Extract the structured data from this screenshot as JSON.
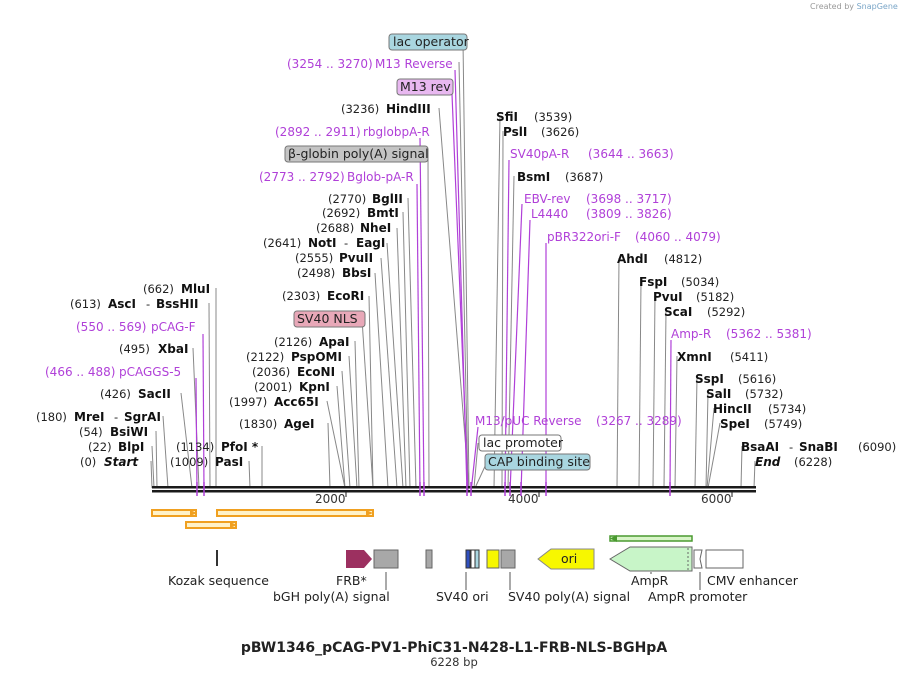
{
  "credit": {
    "created_by": "Created by",
    "brand": "SnapGene"
  },
  "plasmid": {
    "name": "pBW1346_pCAG-PV1-PhiC31-N428-L1-FRB-NLS-BGHpA",
    "length_label": "6228 bp"
  },
  "scale_ticks": [
    "2000",
    "4000",
    "6000"
  ],
  "primer_boxes": [
    {
      "label": "M13 rev"
    }
  ],
  "feature_boxes": [
    {
      "label": "lac operator",
      "color": "#a9d6e0"
    },
    {
      "label": "β-globin poly(A) signal",
      "color": "#c4c4c4"
    },
    {
      "label": "SV40 NLS",
      "color": "#e8a8b8"
    },
    {
      "label": "lac promoter",
      "color": "#ffffff"
    },
    {
      "label": "CAP binding site",
      "color": "#a9d6e0"
    }
  ],
  "left_sites": [
    {
      "pos": "(3236)",
      "enz": "HindIII"
    },
    {
      "pos": "(2770)",
      "enz": "BglII"
    },
    {
      "pos": "(2692)",
      "enz": "BmtI"
    },
    {
      "pos": "(2688)",
      "enz": "NheI"
    },
    {
      "pos": "(2641)",
      "enz": "NotI",
      "enz2": "EagI"
    },
    {
      "pos": "(2555)",
      "enz": "PvuII"
    },
    {
      "pos": "(2498)",
      "enz": "BbsI"
    },
    {
      "pos": "(2303)",
      "enz": "EcoRI"
    },
    {
      "pos": "(662)",
      "enz": "MluI"
    },
    {
      "pos": "(613)",
      "enz": "AscI",
      "enz2": "BssHII"
    },
    {
      "pos": "(495)",
      "enz": "XbaI"
    },
    {
      "pos": "(426)",
      "enz": "SacII"
    },
    {
      "pos": "(180)",
      "enz": "MreI",
      "enz2": "SgrAI"
    },
    {
      "pos": "(54)",
      "enz": "BsiWI"
    },
    {
      "pos": "(22)",
      "enz": "BlpI"
    },
    {
      "pos": "(0)",
      "enz": "Start"
    },
    {
      "pos": "(2126)",
      "enz": "ApaI"
    },
    {
      "pos": "(2122)",
      "enz": "PspOMI"
    },
    {
      "pos": "(2036)",
      "enz": "EcoNI"
    },
    {
      "pos": "(2001)",
      "enz": "KpnI"
    },
    {
      "pos": "(1997)",
      "enz": "Acc65I"
    },
    {
      "pos": "(1830)",
      "enz": "AgeI"
    },
    {
      "pos": "(1134)",
      "enz": "PfoI *"
    },
    {
      "pos": "(1009)",
      "enz": "PasI"
    }
  ],
  "left_primers": [
    {
      "range": "(3254 .. 3270)",
      "name": "M13 Reverse"
    },
    {
      "range": "(2892 .. 2911)",
      "name": "rbglobpA-R"
    },
    {
      "range": "(2773 .. 2792)",
      "name": "Bglob-pA-R"
    },
    {
      "range": "(550 .. 569)",
      "name": "pCAG-F"
    },
    {
      "range": "(466 .. 488)",
      "name": "pCAGGS-5"
    }
  ],
  "right_sites": [
    {
      "enz": "SfiI",
      "pos": "(3539)"
    },
    {
      "enz": "PslI",
      "pos": "(3626)"
    },
    {
      "enz": "BsmI",
      "pos": "(3687)"
    },
    {
      "enz": "AhdI",
      "pos": "(4812)"
    },
    {
      "enz": "FspI",
      "pos": "(5034)"
    },
    {
      "enz": "PvuI",
      "pos": "(5182)"
    },
    {
      "enz": "ScaI",
      "pos": "(5292)"
    },
    {
      "enz": "XmnI",
      "pos": "(5411)"
    },
    {
      "enz": "SspI",
      "pos": "(5616)"
    },
    {
      "enz": "SalI",
      "pos": "(5732)"
    },
    {
      "enz": "HincII",
      "pos": "(5734)"
    },
    {
      "enz": "SpeI",
      "pos": "(5749)"
    },
    {
      "enz": "BsaAI",
      "enz2": "SnaBI",
      "pos": "(6090)"
    },
    {
      "enz": "End",
      "pos": "(6228)"
    }
  ],
  "right_primers": [
    {
      "name": "SV40pA-R",
      "range": "(3644 .. 3663)"
    },
    {
      "name": "EBV-rev",
      "range": "(3698 .. 3717)"
    },
    {
      "name": "L4440",
      "range": "(3809 .. 3826)"
    },
    {
      "name": "pBR322ori-F",
      "range": "(4060 .. 4079)"
    },
    {
      "name": "Amp-R",
      "range": "(5362 .. 5381)"
    },
    {
      "name": "M13/pUC Reverse",
      "range": "(3267 .. 3289)"
    }
  ],
  "bottom_features": [
    "Kozak sequence",
    "FRB*",
    "bGH poly(A) signal",
    "SV40 ori",
    "SV40 poly(A) signal",
    "AmpR",
    "AmpR promoter",
    "CMV enhancer"
  ],
  "ori_label": "ori",
  "colors": {
    "backbone": "#1a1a1a",
    "primer": "#b040d8",
    "orf": "#f0a020",
    "frb": "#9c3060",
    "terminator": "#a8a8a8",
    "ori": "#f7f700",
    "ampr": "#c8f5c8",
    "cmv": "#ffffff"
  }
}
